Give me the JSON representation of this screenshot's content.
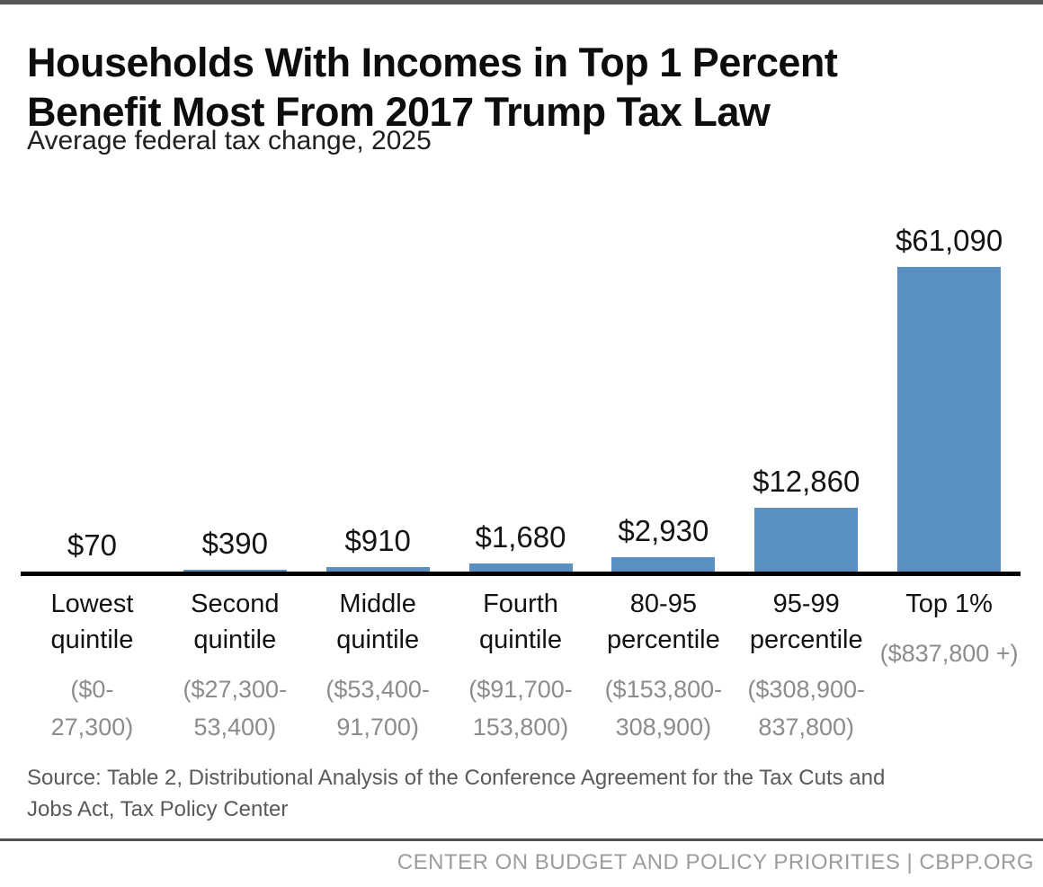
{
  "header": {
    "title": "Households With Incomes in Top 1 Percent Benefit Most From 2017 Trump Tax Law",
    "title_lines": [
      "Households With Incomes in Top 1 Percent",
      "Benefit Most From 2017 Trump Tax Law"
    ],
    "subtitle": "Average federal tax change, 2025"
  },
  "chart_data": {
    "type": "bar",
    "title": "Households With Incomes in Top 1 Percent Benefit Most From 2017 Trump Tax Law",
    "subtitle": "Average federal tax change, 2025",
    "categories": [
      "Lowest quintile",
      "Second quintile",
      "Middle quintile",
      "Fourth quintile",
      "80-95 percentile",
      "95-99 percentile",
      "Top 1%"
    ],
    "income_ranges": [
      "($0-27,300)",
      "($27,300-53,400)",
      "($53,400-91,700)",
      "($91,700-153,800)",
      "($153,800-308,900)",
      "($308,900-837,800)",
      "($837,800 +)"
    ],
    "values": [
      70,
      390,
      910,
      1680,
      2930,
      12860,
      61090
    ],
    "value_labels": [
      "$70",
      "$390",
      "$910",
      "$1,680",
      "$2,930",
      "$12,860",
      "$61,090"
    ],
    "bar_color": "#5a8fc2",
    "baseline_color": "#000000",
    "ylim": [
      0,
      61090
    ],
    "grid": false,
    "legend": false,
    "items": [
      {
        "label_lines": [
          "Lowest",
          "quintile"
        ],
        "range_lines": [
          "($0-",
          "27,300)"
        ]
      },
      {
        "label_lines": [
          "Second",
          "quintile"
        ],
        "range_lines": [
          "($27,300-",
          "53,400)"
        ]
      },
      {
        "label_lines": [
          "Middle",
          "quintile"
        ],
        "range_lines": [
          "($53,400-",
          "91,700)"
        ]
      },
      {
        "label_lines": [
          "Fourth",
          "quintile"
        ],
        "range_lines": [
          "($91,700-",
          "153,800)"
        ]
      },
      {
        "label_lines": [
          "80-95",
          "percentile"
        ],
        "range_lines": [
          "($153,800-",
          "308,900)"
        ]
      },
      {
        "label_lines": [
          "95-99",
          "percentile"
        ],
        "range_lines": [
          "($308,900-",
          "837,800)"
        ]
      },
      {
        "label_lines": [
          "Top 1%"
        ],
        "range_lines": [
          "($837,800 +)"
        ]
      }
    ]
  },
  "source": {
    "text": "Source: Table 2, Distributional Analysis of the Conference Agreement for the Tax Cuts and Jobs Act, Tax Policy Center",
    "lines": [
      "Source: Table 2, Distributional Analysis of the Conference Agreement for the Tax Cuts and",
      "Jobs Act, Tax Policy Center"
    ]
  },
  "footer": {
    "text": "CENTER ON BUDGET AND POLICY PRIORITIES | CBPP.ORG"
  }
}
